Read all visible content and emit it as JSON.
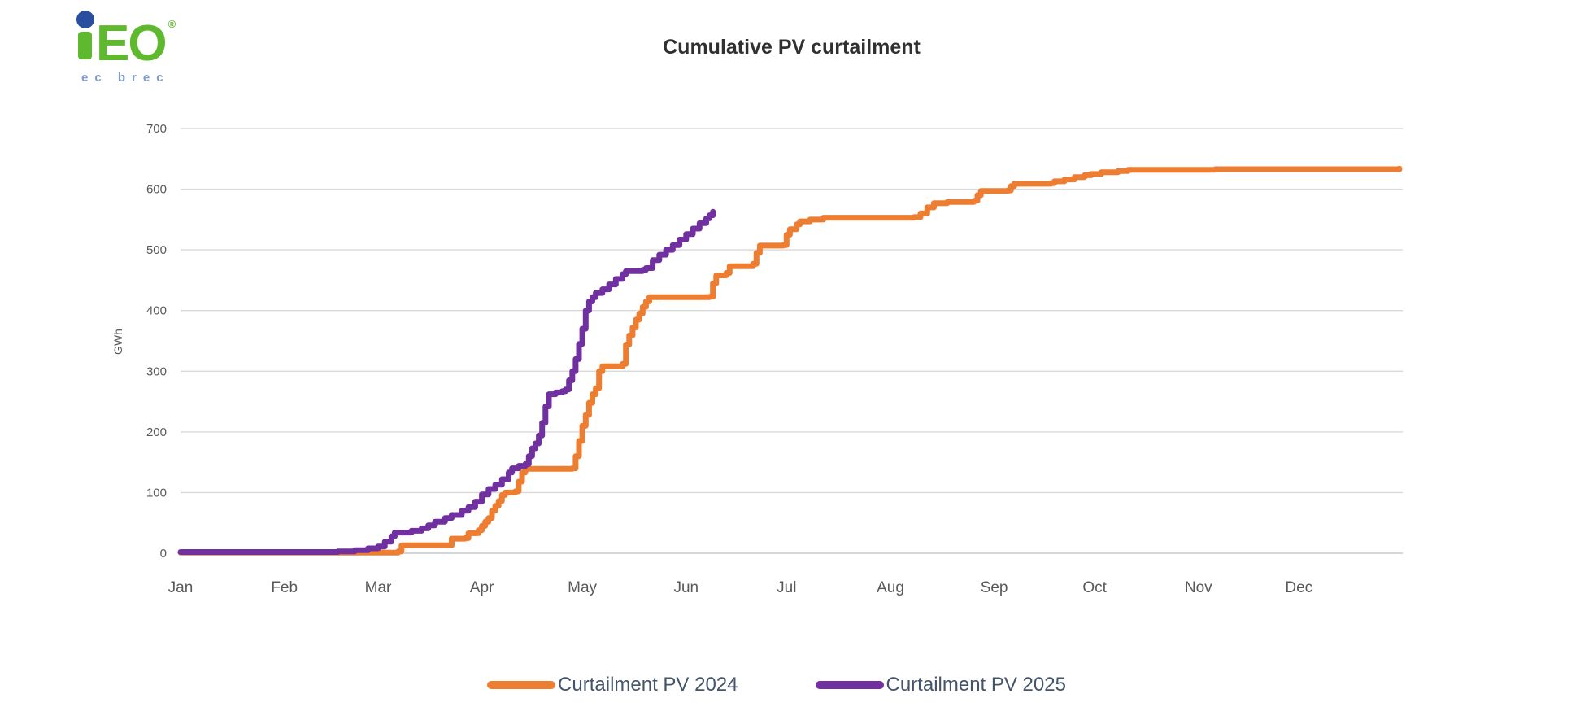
{
  "logo": {
    "letters": "EO",
    "mark": "®",
    "subtext": "ec brec",
    "green": "#5fb92e",
    "blue": "#2a4e9e",
    "subtext_color": "#7f9ccb"
  },
  "colors": {
    "gridline": "#d9d9d9",
    "axis_line": "#c9c9c9",
    "axis_text": "#595959",
    "title_text": "#303030",
    "legend_text": "#44546a"
  },
  "chart_data": {
    "type": "line",
    "title": "Cumulative PV curtailment",
    "ylabel": "GWh",
    "xlabel": "",
    "ylim": [
      0,
      700
    ],
    "y_ticks": [
      0,
      100,
      200,
      300,
      400,
      500,
      600,
      700
    ],
    "x_unit": "day of year",
    "xlim": [
      1,
      366
    ],
    "x_tick_labels": [
      "Jan",
      "Feb",
      "Mar",
      "Apr",
      "May",
      "Jun",
      "Jul",
      "Aug",
      "Sep",
      "Oct",
      "Nov",
      "Dec"
    ],
    "grid": true,
    "legend_position": "bottom",
    "line_style": "step-after",
    "series": [
      {
        "name": "Curtailment PV 2024",
        "color": "#ED7D31",
        "points": [
          [
            1,
            1
          ],
          [
            63,
            1
          ],
          [
            66,
            3
          ],
          [
            67,
            13
          ],
          [
            81,
            13
          ],
          [
            82,
            24
          ],
          [
            86,
            25
          ],
          [
            87,
            33
          ],
          [
            90,
            38
          ],
          [
            91,
            45
          ],
          [
            92,
            52
          ],
          [
            93,
            58
          ],
          [
            94,
            70
          ],
          [
            95,
            78
          ],
          [
            96,
            86
          ],
          [
            97,
            96
          ],
          [
            98,
            100
          ],
          [
            101,
            102
          ],
          [
            102,
            118
          ],
          [
            103,
            133
          ],
          [
            104,
            139
          ],
          [
            118,
            140
          ],
          [
            119,
            160
          ],
          [
            120,
            185
          ],
          [
            121,
            210
          ],
          [
            122,
            228
          ],
          [
            123,
            248
          ],
          [
            124,
            262
          ],
          [
            125,
            272
          ],
          [
            126,
            300
          ],
          [
            127,
            308
          ],
          [
            133,
            312
          ],
          [
            134,
            344
          ],
          [
            135,
            359
          ],
          [
            136,
            372
          ],
          [
            137,
            385
          ],
          [
            138,
            395
          ],
          [
            139,
            406
          ],
          [
            140,
            415
          ],
          [
            141,
            422
          ],
          [
            159,
            423
          ],
          [
            160,
            445
          ],
          [
            161,
            458
          ],
          [
            164,
            462
          ],
          [
            165,
            473
          ],
          [
            172,
            477
          ],
          [
            173,
            495
          ],
          [
            174,
            507
          ],
          [
            181,
            508
          ],
          [
            182,
            525
          ],
          [
            183,
            534
          ],
          [
            185,
            542
          ],
          [
            186,
            547
          ],
          [
            189,
            550
          ],
          [
            193,
            553
          ],
          [
            220,
            554
          ],
          [
            222,
            560
          ],
          [
            224,
            570
          ],
          [
            226,
            577
          ],
          [
            230,
            579
          ],
          [
            238,
            581
          ],
          [
            239,
            590
          ],
          [
            240,
            597
          ],
          [
            248,
            598
          ],
          [
            249,
            605
          ],
          [
            250,
            609
          ],
          [
            261,
            610
          ],
          [
            262,
            613
          ],
          [
            265,
            616
          ],
          [
            268,
            620
          ],
          [
            271,
            623
          ],
          [
            273,
            625
          ],
          [
            276,
            628
          ],
          [
            281,
            630
          ],
          [
            284,
            632
          ],
          [
            310,
            633
          ],
          [
            365,
            634
          ]
        ]
      },
      {
        "name": "Curtailment PV 2025",
        "color": "#7030A0",
        "points": [
          [
            1,
            2
          ],
          [
            40,
            2
          ],
          [
            48,
            3
          ],
          [
            53,
            5
          ],
          [
            57,
            8
          ],
          [
            60,
            11
          ],
          [
            62,
            19
          ],
          [
            64,
            28
          ],
          [
            65,
            34
          ],
          [
            70,
            37
          ],
          [
            73,
            41
          ],
          [
            75,
            46
          ],
          [
            77,
            52
          ],
          [
            80,
            58
          ],
          [
            82,
            63
          ],
          [
            85,
            70
          ],
          [
            87,
            76
          ],
          [
            89,
            85
          ],
          [
            91,
            97
          ],
          [
            93,
            106
          ],
          [
            95,
            113
          ],
          [
            97,
            122
          ],
          [
            99,
            133
          ],
          [
            100,
            140
          ],
          [
            102,
            144
          ],
          [
            104,
            147
          ],
          [
            105,
            160
          ],
          [
            106,
            173
          ],
          [
            107,
            181
          ],
          [
            108,
            194
          ],
          [
            109,
            215
          ],
          [
            110,
            242
          ],
          [
            111,
            262
          ],
          [
            113,
            265
          ],
          [
            115,
            267
          ],
          [
            116,
            270
          ],
          [
            117,
            285
          ],
          [
            118,
            300
          ],
          [
            119,
            320
          ],
          [
            120,
            345
          ],
          [
            121,
            370
          ],
          [
            122,
            400
          ],
          [
            123,
            415
          ],
          [
            124,
            422
          ],
          [
            125,
            429
          ],
          [
            127,
            435
          ],
          [
            129,
            443
          ],
          [
            131,
            452
          ],
          [
            133,
            460
          ],
          [
            134,
            465
          ],
          [
            139,
            467
          ],
          [
            140,
            470
          ],
          [
            142,
            483
          ],
          [
            144,
            492
          ],
          [
            146,
            500
          ],
          [
            148,
            508
          ],
          [
            150,
            517
          ],
          [
            152,
            526
          ],
          [
            154,
            535
          ],
          [
            156,
            544
          ],
          [
            158,
            552
          ],
          [
            159,
            557
          ],
          [
            160,
            563
          ]
        ]
      }
    ]
  }
}
